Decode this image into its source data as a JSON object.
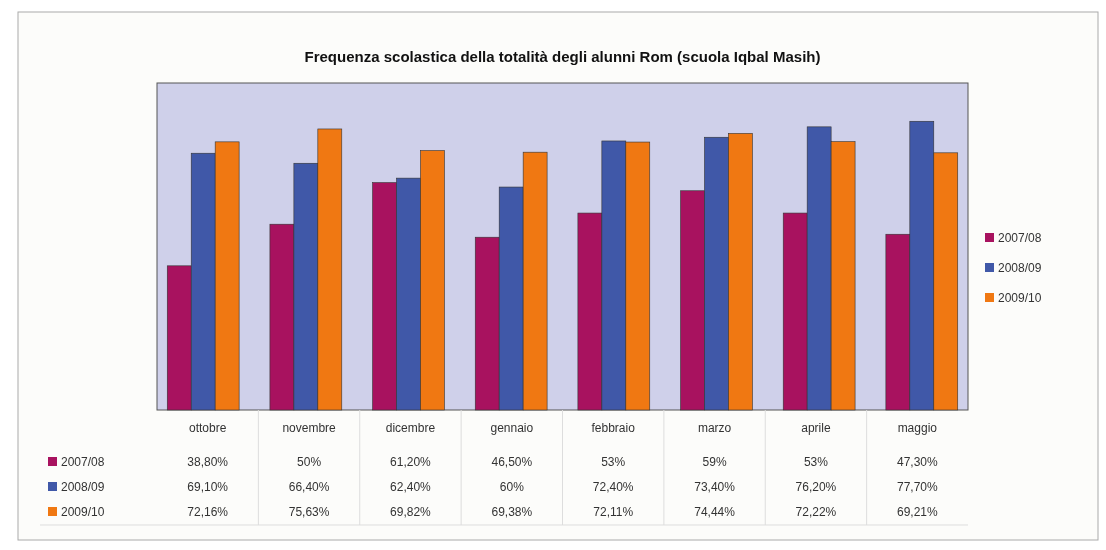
{
  "chart_data": {
    "type": "bar",
    "title": "Frequenza scolastica della totalità degli alunni Rom (scuola Iqbal Masih)",
    "categories": [
      "ottobre",
      "novembre",
      "dicembre",
      "gennaio",
      "febbraio",
      "marzo",
      "aprile",
      "maggio"
    ],
    "ylim": [
      0,
      88
    ],
    "legend": "right",
    "series": [
      {
        "name": "2007/08",
        "color": "#a8125f",
        "values": [
          38.8,
          50,
          61.2,
          46.5,
          53,
          59,
          53,
          47.3
        ],
        "value_labels": [
          "38,80%",
          "50%",
          "61,20%",
          "46,50%",
          "53%",
          "59%",
          "53%",
          "47,30%"
        ]
      },
      {
        "name": "2008/09",
        "color": "#4058a8",
        "values": [
          69.1,
          66.4,
          62.4,
          60,
          72.4,
          73.4,
          76.2,
          77.7
        ],
        "value_labels": [
          "69,10%",
          "66,40%",
          "62,40%",
          "60%",
          "72,40%",
          "73,40%",
          "76,20%",
          "77,70%"
        ]
      },
      {
        "name": "2009/10",
        "color": "#f07812",
        "values": [
          72.16,
          75.63,
          69.82,
          69.38,
          72.11,
          74.44,
          72.22,
          69.21
        ],
        "value_labels": [
          "72,16%",
          "75,63%",
          "69,82%",
          "69,38%",
          "72,11%",
          "74,44%",
          "72,22%",
          "69,21%"
        ]
      }
    ]
  }
}
